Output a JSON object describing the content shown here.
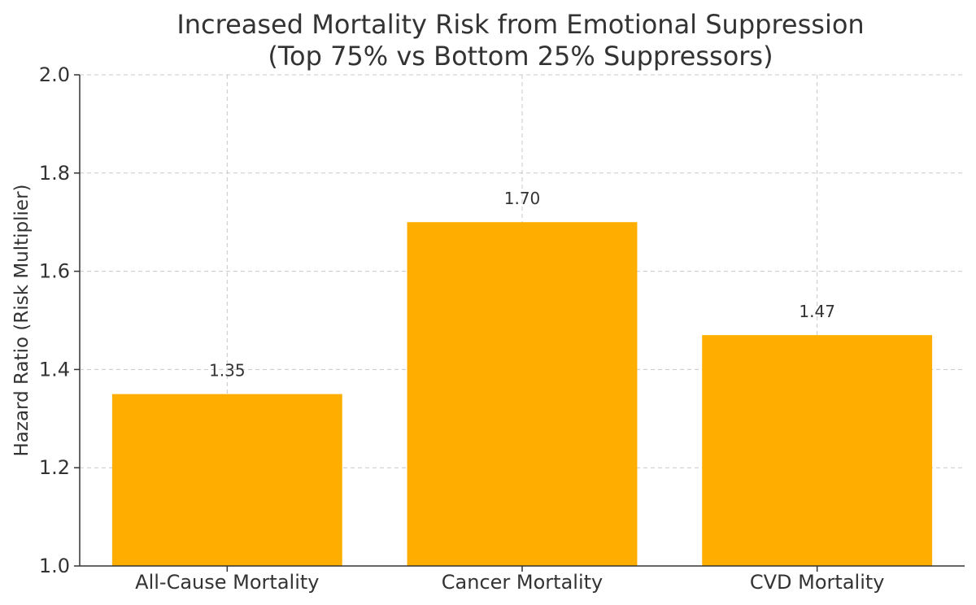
{
  "chart_data": {
    "type": "bar",
    "title_lines": [
      "Increased Mortality Risk from Emotional Suppression",
      "(Top 75% vs Bottom 25% Suppressors)"
    ],
    "xlabel": "",
    "ylabel": "Hazard Ratio (Risk Multiplier)",
    "categories": [
      "All-Cause Mortality",
      "Cancer Mortality",
      "CVD Mortality"
    ],
    "values": [
      1.35,
      1.7,
      1.47
    ],
    "data_labels": [
      "1.35",
      "1.70",
      "1.47"
    ],
    "ylim": [
      1.0,
      2.0
    ],
    "yticks": [
      1.0,
      1.2,
      1.4,
      1.6,
      1.8,
      2.0
    ],
    "ytick_labels": [
      "1.0",
      "1.2",
      "1.4",
      "1.6",
      "1.8",
      "2.0"
    ],
    "bar_color": "#ffae00",
    "grid": true,
    "legend": "none"
  }
}
